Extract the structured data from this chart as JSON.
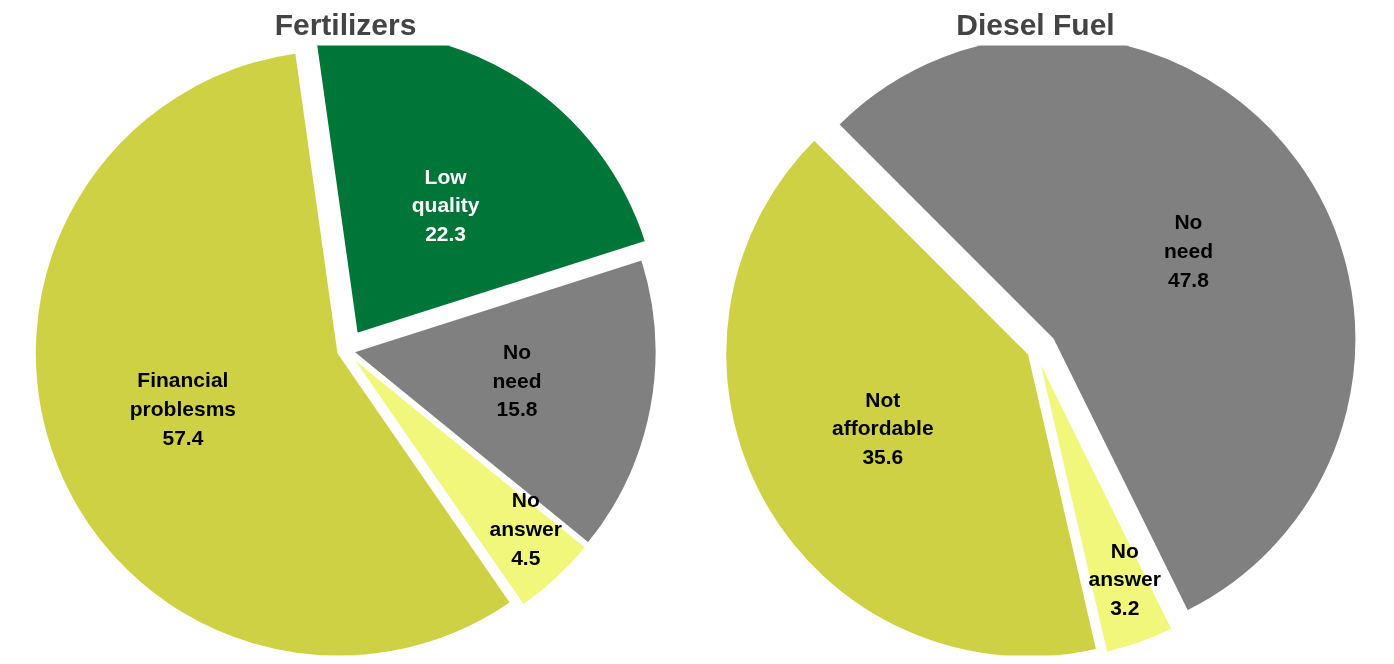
{
  "chart_data": [
    {
      "type": "pie",
      "title": "Fertilizers",
      "categories": [
        "Low quality",
        "No need",
        "No answer",
        "Financial problesms"
      ],
      "values": [
        22.3,
        15.8,
        4.5,
        57.4
      ],
      "colors": [
        "#007538",
        "#808080",
        "#f0f77a",
        "#cfd145"
      ],
      "data_labels": true
    },
    {
      "type": "pie",
      "title": "Diesel Fuel",
      "categories": [
        "No need",
        "No answer",
        "Not affordable"
      ],
      "values": [
        47.8,
        3.2,
        35.6
      ],
      "colors": [
        "#808080",
        "#f0f77a",
        "#cfd145"
      ],
      "data_labels": true
    }
  ]
}
